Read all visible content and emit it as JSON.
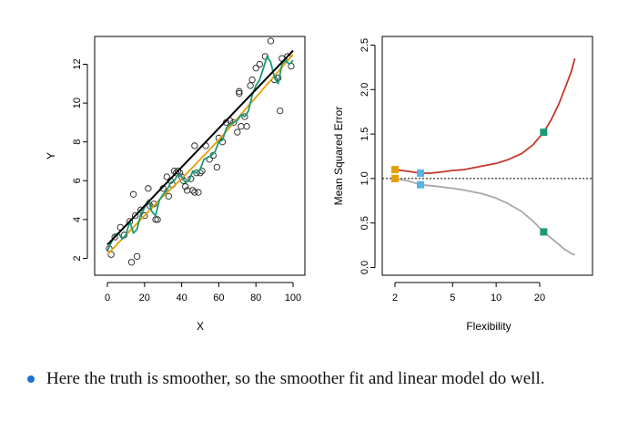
{
  "chart_data": [
    {
      "type": "scatter",
      "xlabel": "X",
      "ylabel": "Y",
      "xlim": [
        0,
        100
      ],
      "ylim": [
        1.5,
        13.3
      ],
      "xticks": [
        0,
        20,
        40,
        60,
        80,
        100
      ],
      "yticks": [
        2,
        4,
        6,
        8,
        10,
        12
      ],
      "grid": false,
      "points": [
        [
          1,
          2.5
        ],
        [
          2,
          2.2
        ],
        [
          4,
          3.1
        ],
        [
          7,
          3.6
        ],
        [
          9,
          3.2
        ],
        [
          12,
          3.9
        ],
        [
          13,
          1.8
        ],
        [
          14,
          5.3
        ],
        [
          15,
          4.2
        ],
        [
          16,
          2.1
        ],
        [
          18,
          4.5
        ],
        [
          20,
          4.2
        ],
        [
          22,
          5.6
        ],
        [
          23,
          4.7
        ],
        [
          25,
          4.8
        ],
        [
          26,
          4.0
        ],
        [
          27,
          4.0
        ],
        [
          30,
          5.6
        ],
        [
          32,
          6.2
        ],
        [
          33,
          5.2
        ],
        [
          34,
          6.0
        ],
        [
          35,
          5.8
        ],
        [
          36,
          6.5
        ],
        [
          37,
          6.4
        ],
        [
          38,
          6.5
        ],
        [
          39,
          6.4
        ],
        [
          40,
          6.2
        ],
        [
          41,
          6.0
        ],
        [
          42,
          5.7
        ],
        [
          43,
          5.5
        ],
        [
          45,
          6.1
        ],
        [
          46,
          5.5
        ],
        [
          47,
          7.8
        ],
        [
          47,
          5.4
        ],
        [
          48,
          6.4
        ],
        [
          49,
          5.4
        ],
        [
          50,
          6.4
        ],
        [
          51,
          6.5
        ],
        [
          53,
          7.8
        ],
        [
          55,
          7.1
        ],
        [
          57,
          7.3
        ],
        [
          59,
          6.7
        ],
        [
          60,
          8.2
        ],
        [
          62,
          8.0
        ],
        [
          64,
          9.0
        ],
        [
          66,
          9.1
        ],
        [
          68,
          9.0
        ],
        [
          70,
          8.5
        ],
        [
          71,
          10.5
        ],
        [
          71,
          10.6
        ],
        [
          72,
          8.8
        ],
        [
          74,
          9.3
        ],
        [
          75,
          8.8
        ],
        [
          77,
          10.9
        ],
        [
          78,
          11.2
        ],
        [
          80,
          11.8
        ],
        [
          82,
          12.0
        ],
        [
          85,
          12.4
        ],
        [
          88,
          13.2
        ],
        [
          90,
          11.2
        ],
        [
          92,
          11.3
        ],
        [
          93,
          9.6
        ],
        [
          94,
          12.3
        ],
        [
          97,
          12.4
        ],
        [
          99,
          11.9
        ]
      ],
      "series": [
        {
          "color": "#000000",
          "x": [
            0,
            100
          ],
          "y": [
            2.7,
            12.7
          ]
        },
        {
          "color": "#e69f00",
          "x": [
            0,
            10,
            20,
            30,
            40,
            50,
            60,
            70,
            80,
            90,
            100
          ],
          "y": [
            2.2,
            3.2,
            4.2,
            5.2,
            6.1,
            7.1,
            8.1,
            9.2,
            10.3,
            11.4,
            12.5
          ]
        },
        {
          "color": "#1a9a78",
          "x": [
            0,
            2,
            4,
            6,
            8,
            10,
            12,
            14,
            16,
            18,
            20,
            22,
            24,
            26,
            28,
            30,
            32,
            34,
            36,
            38,
            40,
            42,
            44,
            46,
            48,
            50,
            52,
            54,
            56,
            58,
            60,
            62,
            64,
            66,
            68,
            70,
            72,
            74,
            76,
            78,
            80,
            82,
            84,
            86,
            88,
            90,
            92,
            94,
            96,
            98,
            100
          ],
          "y": [
            2.4,
            2.8,
            3.2,
            3.3,
            3.0,
            3.2,
            3.9,
            3.3,
            3.5,
            4.3,
            4.6,
            5.0,
            4.4,
            4.2,
            5.0,
            5.3,
            5.5,
            5.9,
            6.0,
            6.3,
            6.2,
            5.9,
            6.0,
            6.5,
            6.4,
            6.6,
            7.1,
            7.2,
            7.3,
            7.5,
            8.0,
            8.1,
            8.7,
            8.9,
            9.0,
            9.1,
            9.4,
            9.3,
            9.6,
            10.4,
            10.9,
            11.2,
            11.8,
            12.4,
            12.1,
            11.3,
            11.0,
            12.0,
            12.2,
            12.0,
            12.2
          ]
        }
      ]
    },
    {
      "type": "line",
      "xlabel": "Flexibility",
      "ylabel": "Mean Squared Error",
      "xscale": "log",
      "xlim": [
        1.85,
        37.5
      ],
      "ylim": [
        -0.05,
        2.6
      ],
      "xticks": [
        2,
        5,
        10,
        20
      ],
      "yticks": [
        0.0,
        0.5,
        1.0,
        1.5,
        2.0,
        2.5
      ],
      "ytick_labels": [
        "0.0",
        "0.5",
        "1.0",
        "1.5",
        "2.0",
        "2.5"
      ],
      "grid": false,
      "reference_line": {
        "y": 1.0,
        "style": "dotted"
      },
      "series": [
        {
          "color": "#c0392b",
          "x": [
            2,
            2.5,
            3,
            3.5,
            4,
            5,
            6,
            8,
            10,
            12,
            15,
            18,
            21.3,
            24,
            27,
            30,
            33,
            35
          ],
          "y": [
            1.1,
            1.08,
            1.06,
            1.06,
            1.07,
            1.09,
            1.1,
            1.14,
            1.17,
            1.21,
            1.28,
            1.38,
            1.52,
            1.66,
            1.83,
            2.02,
            2.2,
            2.35
          ]
        },
        {
          "color": "#a8a8a8",
          "x": [
            2,
            2.5,
            3,
            3.5,
            4,
            5,
            6,
            8,
            10,
            12,
            15,
            18,
            21.3,
            24,
            27,
            30,
            33,
            35
          ],
          "y": [
            1.0,
            0.97,
            0.93,
            0.92,
            0.91,
            0.89,
            0.87,
            0.83,
            0.78,
            0.72,
            0.63,
            0.52,
            0.4,
            0.33,
            0.26,
            0.2,
            0.16,
            0.14
          ]
        }
      ],
      "markers": [
        {
          "x": 2,
          "y": 1.1,
          "color": "#e69f00"
        },
        {
          "x": 2,
          "y": 1.0,
          "color": "#e69f00"
        },
        {
          "x": 3,
          "y": 1.06,
          "color": "#56b4e9"
        },
        {
          "x": 3,
          "y": 0.93,
          "color": "#56b4e9"
        },
        {
          "x": 21.3,
          "y": 1.52,
          "color": "#1a9a78"
        },
        {
          "x": 21.3,
          "y": 0.4,
          "color": "#1a9a78"
        }
      ]
    }
  ],
  "bullet": {
    "color": "#1e6fd9",
    "text": "Here the truth is smoother, so the smoother fit and linear model do well."
  }
}
